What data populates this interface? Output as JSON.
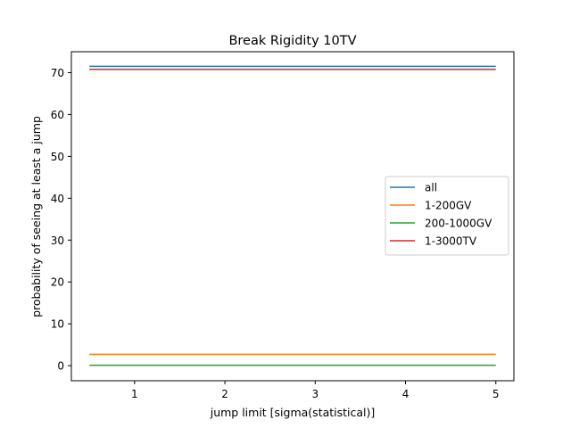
{
  "chart_data": {
    "type": "line",
    "title": "Break Rigidity 10TV",
    "xlabel": "jump limit [sigma(statistical)]",
    "ylabel": "probability of seeing at least a jump",
    "xlim": [
      0.3,
      5.2
    ],
    "ylim": [
      -3.6,
      75.0
    ],
    "xticks": [
      1,
      2,
      3,
      4,
      5
    ],
    "yticks": [
      0,
      10,
      20,
      30,
      40,
      50,
      60,
      70
    ],
    "grid": false,
    "legend_position": "center-right",
    "x": [
      0.5,
      1,
      1.5,
      2,
      2.5,
      3,
      3.5,
      4,
      4.5,
      5
    ],
    "series": [
      {
        "name": "all",
        "color": "#1f77b4",
        "values": [
          71.5,
          71.5,
          71.5,
          71.5,
          71.5,
          71.5,
          71.5,
          71.5,
          71.5,
          71.5
        ]
      },
      {
        "name": "1-200GV",
        "color": "#ff7f0e",
        "values": [
          2.7,
          2.7,
          2.7,
          2.7,
          2.7,
          2.7,
          2.7,
          2.7,
          2.7,
          2.7
        ]
      },
      {
        "name": "200-1000GV",
        "color": "#2ca02c",
        "values": [
          0.1,
          0.1,
          0.1,
          0.1,
          0.1,
          0.1,
          0.1,
          0.1,
          0.1,
          0.1
        ]
      },
      {
        "name": "1-3000TV",
        "color": "#d62728",
        "values": [
          70.8,
          70.8,
          70.8,
          70.8,
          70.8,
          70.8,
          70.8,
          70.8,
          70.8,
          70.8
        ]
      }
    ]
  }
}
